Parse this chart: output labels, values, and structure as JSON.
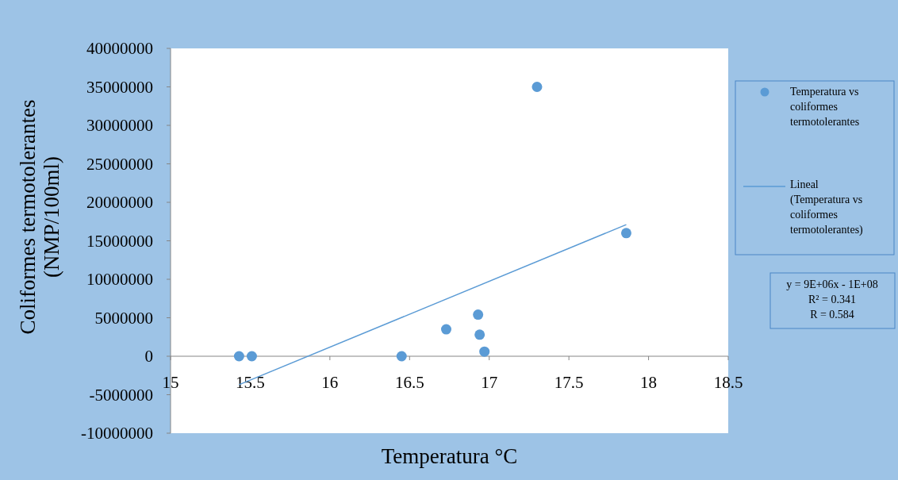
{
  "chart_data": {
    "type": "scatter",
    "xlabel": "Temperatura °C",
    "ylabel": "Coliformes termotolerantes (NMP/100ml)",
    "xlim": [
      15,
      18.5
    ],
    "xticks": [
      15,
      15.5,
      16,
      16.5,
      17,
      17.5,
      18,
      18.5
    ],
    "ylim": [
      -10000000,
      40000000
    ],
    "yticks": [
      -10000000,
      -5000000,
      0,
      5000000,
      10000000,
      15000000,
      20000000,
      25000000,
      30000000,
      35000000,
      40000000
    ],
    "grid": false,
    "legend": "right",
    "series": [
      {
        "name": "Temperatura vs coliformes termotolerantes",
        "marker": "circle",
        "color": "#5b9bd5",
        "x": [
          15.43,
          15.51,
          16.45,
          16.73,
          16.93,
          16.94,
          16.97,
          17.3,
          17.86
        ],
        "values": [
          0,
          0,
          0,
          3500000,
          5400000,
          2800000,
          600000,
          35000000,
          16000000
        ]
      },
      {
        "name": "Lineal (Temperatura vs coliformes termotolerantes)",
        "type": "line",
        "marker": "none",
        "color": "#5b9bd5",
        "x": [
          15.43,
          17.86
        ],
        "values": [
          -3700000,
          17100000
        ]
      }
    ],
    "annotations": [
      "y = 9E+06x - 1E+08",
      "R² = 0.341",
      "R = 0.584"
    ]
  }
}
